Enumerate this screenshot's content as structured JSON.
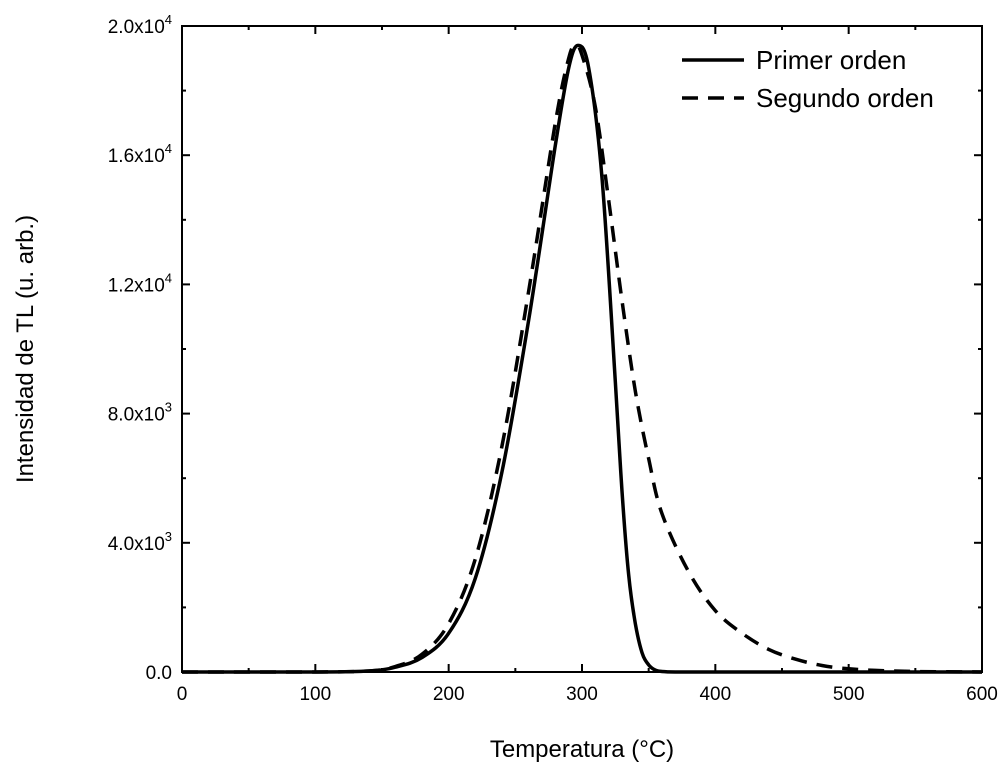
{
  "chart_data": {
    "type": "line",
    "xlabel": "Temperatura (°C)",
    "ylabel": "Intensidad de TL (u. arb.)",
    "xlim": [
      0,
      600
    ],
    "ylim": [
      0,
      20000
    ],
    "grid": false,
    "legend_position": "top-right",
    "x_ticks": [
      {
        "value": 0,
        "label": "0"
      },
      {
        "value": 100,
        "label": "100"
      },
      {
        "value": 200,
        "label": "200"
      },
      {
        "value": 300,
        "label": "300"
      },
      {
        "value": 400,
        "label": "400"
      },
      {
        "value": 500,
        "label": "500"
      },
      {
        "value": 600,
        "label": "600"
      }
    ],
    "y_ticks": [
      {
        "value": 0,
        "mant": "0.0",
        "exp": ""
      },
      {
        "value": 4000,
        "mant": "4.0x10",
        "exp": "3"
      },
      {
        "value": 8000,
        "mant": "8.0x10",
        "exp": "3"
      },
      {
        "value": 12000,
        "mant": "1.2x10",
        "exp": "4"
      },
      {
        "value": 16000,
        "mant": "1.6x10",
        "exp": "4"
      },
      {
        "value": 20000,
        "mant": "2.0x10",
        "exp": "4"
      }
    ],
    "series": [
      {
        "name": "Primer orden",
        "style": "solid",
        "color": "#000000",
        "x": [
          0,
          100,
          140,
          160,
          180,
          200,
          220,
          240,
          260,
          280,
          290,
          297,
          305,
          315,
          325,
          330,
          335,
          340,
          345,
          350,
          355,
          360,
          370,
          400,
          500,
          600
        ],
        "y": [
          0,
          0,
          30,
          150,
          450,
          1200,
          2900,
          6200,
          10900,
          16300,
          18700,
          19400,
          18700,
          15300,
          9000,
          5600,
          3000,
          1500,
          600,
          220,
          60,
          15,
          0,
          0,
          0,
          0
        ]
      },
      {
        "name": "Segundo orden",
        "style": "dashed",
        "color": "#000000",
        "x": [
          0,
          100,
          140,
          160,
          180,
          200,
          220,
          240,
          260,
          280,
          290,
          295,
          300,
          310,
          320,
          330,
          340,
          350,
          360,
          380,
          400,
          420,
          440,
          460,
          480,
          500,
          520,
          550,
          600
        ],
        "y": [
          0,
          0,
          30,
          170,
          550,
          1500,
          3500,
          7000,
          11800,
          17000,
          19000,
          19400,
          19100,
          17500,
          14600,
          11500,
          8700,
          6600,
          4900,
          3100,
          1900,
          1200,
          700,
          400,
          200,
          100,
          50,
          15,
          0
        ]
      }
    ]
  }
}
